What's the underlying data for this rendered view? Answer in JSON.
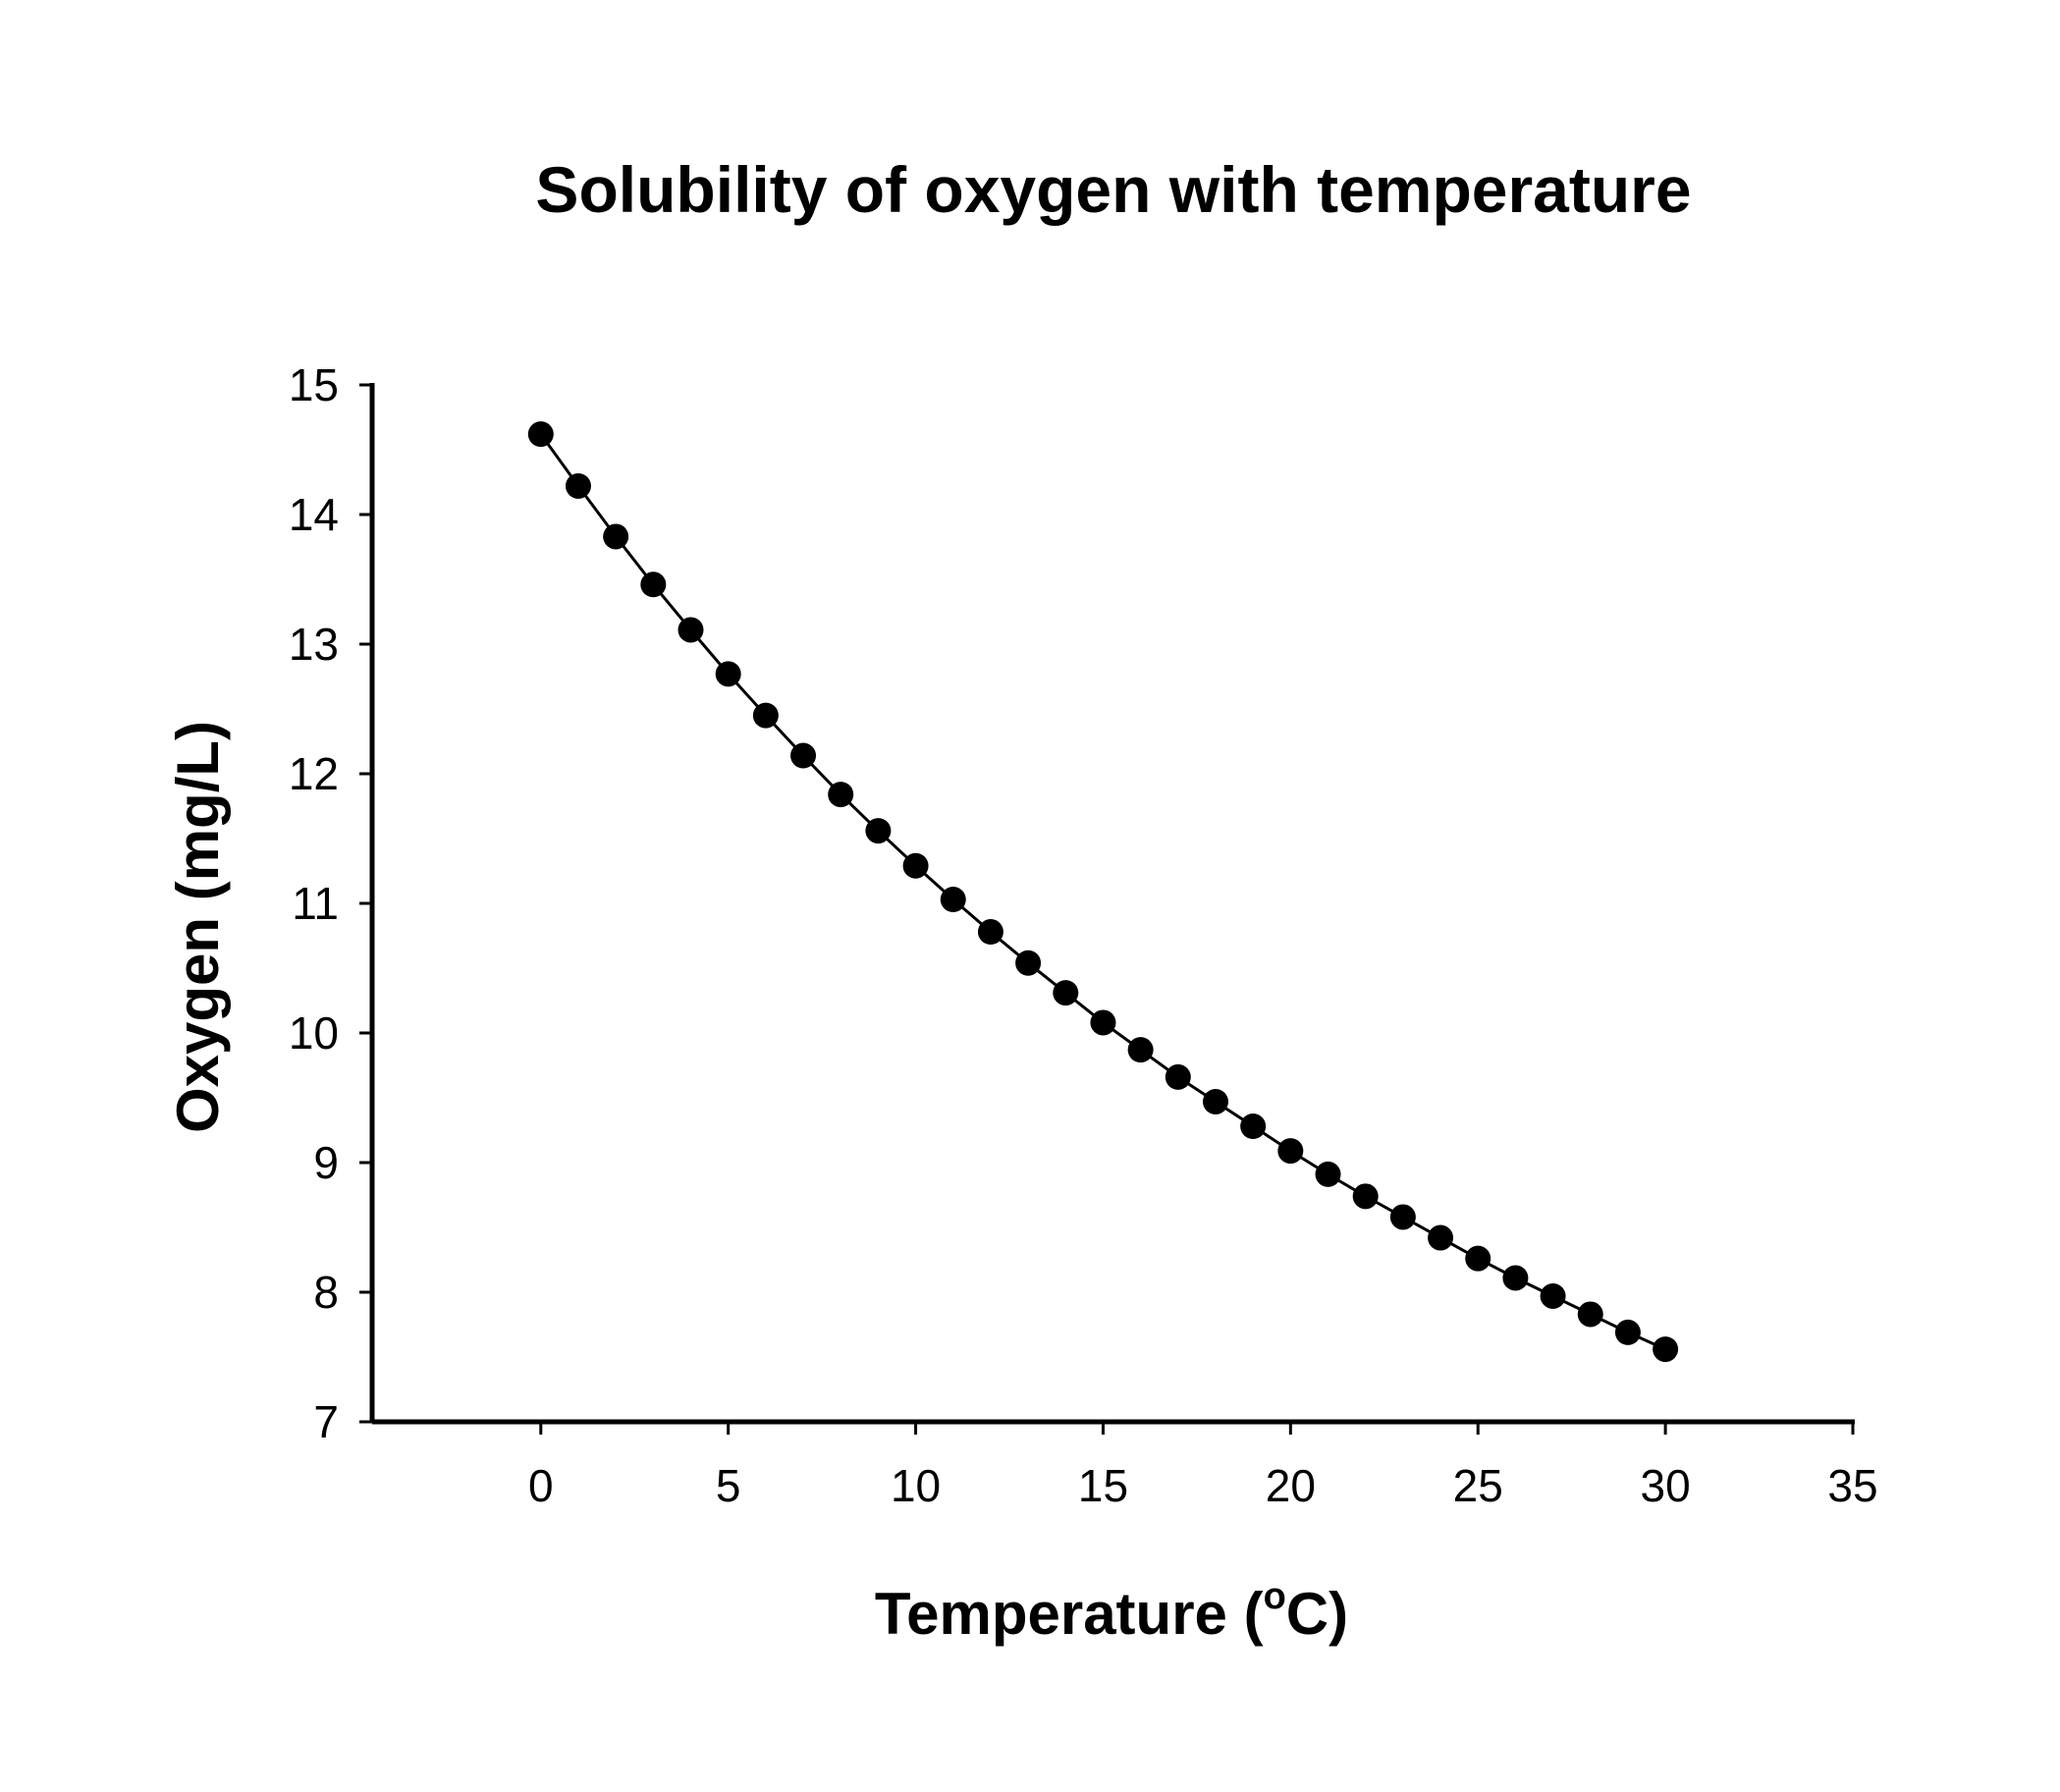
{
  "chart_data": {
    "type": "line",
    "title": "Solubility of oxygen with temperature",
    "xlabel": "Temperature (",
    "xlabel_degree": "o",
    "xlabel_unit": "C)",
    "ylabel": "Oxygen (mg/L)",
    "xlim": [
      -4.5,
      35
    ],
    "ylim": [
      7,
      15
    ],
    "xticks": [
      0,
      5,
      10,
      15,
      20,
      25,
      30,
      35
    ],
    "yticks": [
      7,
      8,
      9,
      10,
      11,
      12,
      13,
      14,
      15
    ],
    "grid": false,
    "legend": "none",
    "markers": "filled-circle",
    "colors": {
      "line": "#000000",
      "marker": "#000000",
      "axis": "#000000"
    },
    "series": [
      {
        "x": [
          0,
          1,
          2,
          3,
          4,
          5,
          6,
          7,
          8,
          9,
          10,
          11,
          12,
          13,
          14,
          15,
          16,
          17,
          18,
          19,
          20,
          21,
          22,
          23,
          24,
          25,
          26,
          27,
          28,
          29,
          30
        ],
        "values": [
          14.62,
          14.22,
          13.83,
          13.46,
          13.11,
          12.77,
          12.45,
          12.14,
          11.84,
          11.56,
          11.29,
          11.03,
          10.78,
          10.54,
          10.31,
          10.08,
          9.87,
          9.66,
          9.47,
          9.28,
          9.09,
          8.91,
          8.74,
          8.58,
          8.42,
          8.26,
          8.11,
          7.97,
          7.83,
          7.69,
          7.56
        ]
      }
    ]
  }
}
